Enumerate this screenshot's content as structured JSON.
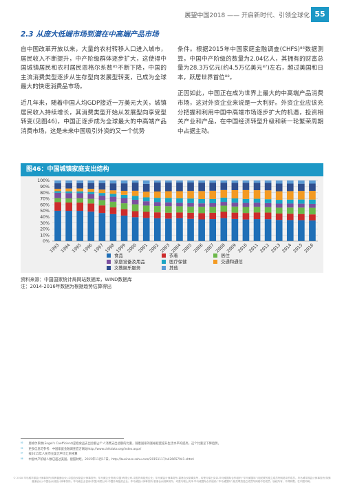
{
  "header": {
    "text": "展望中国2018 —— 开启新时代、引领全球化",
    "page_number": "55"
  },
  "section_title": "2.3 从庞大低端市场到潜在中高端产品市场",
  "left_column": [
    "自中国改革开放以来，大量的农村转移人口进入城市，居民收入不断提升，中产阶级群体逐步扩大，这使得中国城镇居民和农村居民恩格尔系数⁸⁵不断下降，中国的主流消费类型逐步从生存型向发展型转变，已成为全球最大的快速消费品市场。",
    "近几年来，随着中国人均GDP接近一万美元大关，城镇居民收入持续增长，其消费类型开始从发展型向享受型转变(见图46)，中国正逐步成为全球最大的中高端产品消费市场，这是未来中国吸引外资的又一个优势"
  ],
  "right_column": [
    "条件。根据2015年中国家庭金融调查(CHFS)⁸⁶数据测算，中国中产阶级的数量为2.04亿人，其拥有的财富总量为28.3万亿元(约4.5万亿美元⁸⁷)左右，超过美国和日本，跃居世界首位⁸⁸。",
    "正因如此，中国正在成为世界上最大的中高端产品消费市场，这对外资企业来说是一大利好。外资企业应该充分把握和利用中国中高端市场逐步扩大的机遇，投资相关产业和产品，在中国经济转型升级和新一轮繁荣周期中占据主动。"
  ],
  "figure_title": "图46：中国城镇家庭支出结构",
  "chart_data": {
    "type": "bar",
    "stacked": true,
    "categories": [
      "1993",
      "1994",
      "1995",
      "1996",
      "1997",
      "1998",
      "1999",
      "2000",
      "2001",
      "2002",
      "2003",
      "2004",
      "2005",
      "2006",
      "2007",
      "2008",
      "2009",
      "2010",
      "2011",
      "2012",
      "2013",
      "2014",
      "2015",
      "2016"
    ],
    "y_ticks": [
      "0%",
      "10%",
      "20%",
      "30%",
      "40%",
      "50%",
      "60%",
      "70%",
      "80%",
      "90%",
      "100%"
    ],
    "ylim": [
      0,
      100
    ],
    "grid": true,
    "legend_position": "bottom",
    "series": [
      {
        "name": "食品",
        "color": "#1f6fb7",
        "values": [
          50.1,
          49.9,
          49.9,
          48.6,
          46.4,
          44.5,
          42.1,
          39.4,
          38.2,
          37.7,
          37.1,
          37.7,
          36.7,
          35.8,
          36.3,
          37.9,
          36.5,
          35.7,
          36.3,
          36.2,
          35.0,
          34.8,
          34.5,
          34.0
        ]
      },
      {
        "name": "衣着",
        "color": "#cc2b2b",
        "values": [
          14.2,
          13.7,
          13.6,
          13.5,
          12.5,
          11.1,
          10.5,
          10.0,
          10.1,
          9.8,
          9.8,
          9.6,
          10.1,
          10.4,
          10.4,
          10.4,
          10.5,
          10.7,
          11.0,
          10.9,
          10.5,
          10.4,
          10.2,
          10.1
        ]
      },
      {
        "name": "居住",
        "color": "#6bb84a",
        "values": [
          6.6,
          6.8,
          7.1,
          7.7,
          8.6,
          9.4,
          9.8,
          11.3,
          10.3,
          10.4,
          10.7,
          10.2,
          10.2,
          10.4,
          9.8,
          10.2,
          10.0,
          9.9,
          9.3,
          8.9,
          9.7,
          10.2,
          10.6,
          10.9
        ]
      },
      {
        "name": "家庭设备及用品",
        "color": "#7b4fa0",
        "values": [
          8.8,
          8.8,
          8.4,
          7.6,
          7.6,
          8.2,
          8.6,
          7.5,
          7.1,
          6.4,
          6.3,
          5.7,
          5.6,
          5.7,
          6.0,
          6.2,
          6.4,
          6.7,
          6.8,
          6.7,
          6.7,
          6.6,
          6.5,
          6.4
        ]
      },
      {
        "name": "医疗保健",
        "color": "#1ba5c4",
        "values": [
          2.7,
          2.9,
          3.1,
          3.7,
          4.3,
          4.7,
          5.3,
          6.4,
          6.5,
          7.1,
          7.3,
          7.4,
          7.6,
          7.1,
          7.0,
          7.0,
          7.0,
          6.5,
          6.4,
          6.4,
          6.2,
          6.5,
          6.8,
          7.1
        ]
      },
      {
        "name": "交通和通信",
        "color": "#f39a22",
        "values": [
          3.8,
          4.7,
          4.8,
          5.1,
          5.6,
          5.9,
          6.7,
          8.5,
          9.3,
          10.4,
          11.1,
          11.8,
          12.6,
          13.2,
          13.6,
          12.6,
          13.7,
          14.7,
          14.2,
          14.7,
          14.1,
          14.0,
          14.2,
          14.4
        ]
      },
      {
        "name": "文教娱乐服务",
        "color": "#2f4f8f",
        "values": [
          9.2,
          8.8,
          8.8,
          9.6,
          10.7,
          11.5,
          12.3,
          13.4,
          13.0,
          15.0,
          14.4,
          14.4,
          13.8,
          13.8,
          13.3,
          12.1,
          12.0,
          12.1,
          12.2,
          12.2,
          12.7,
          12.4,
          11.9,
          12.0
        ]
      },
      {
        "name": "其他",
        "color": "#5b9bd5",
        "values": [
          4.6,
          4.4,
          4.3,
          4.2,
          4.3,
          4.7,
          4.7,
          3.5,
          5.5,
          3.2,
          3.3,
          3.2,
          3.4,
          3.6,
          3.6,
          3.6,
          3.9,
          3.7,
          3.8,
          4.0,
          5.1,
          5.1,
          5.3,
          5.1
        ]
      }
    ]
  },
  "source_lines": [
    "资料来源：中国国家统计局网站数据库，WIND数据库",
    "注：2014-2016年数据为根据趋势估算得出"
  ],
  "footnotes": [
    {
      "num": "⁸⁵",
      "text": "恩格尔系数(Engel's Coefficient)是指食品支出总额占个人消费支出总额的比重，随着国家的富裕程度提升生活水平的提高，这个比重呈下降趋势。"
    },
    {
      "num": "⁸⁶",
      "text": "更多信息可参考：中国家庭金融调查官方网站http://www.chfsdata.org/index.aspx/"
    },
    {
      "num": "⁸⁷",
      "text": "按2015年人民币兑美元平均汇率换算"
    },
    {
      "num": "⁸⁸",
      "text": "中国中产阶级人数已超过美国，搜狐财经，2015年11月17日，http://business.sohu.com/20151117/n426657941.shtml"
    }
  ],
  "copyright": "© 2018 毕马威华振会计师事务所(特殊普通合伙)-中国合伙制会计师事务所；毕马威企业咨询(中国)有限公司-中国外商独资企业；毕马威会计师事务所-香港合伙制事务所，均是与瑞士实体-毕马威国际合作组织(“毕马威国际”)相关联的独立成员所网络中的成员。毕马威华振会计师事务所(特殊普通合伙)-中国合伙制会计师事务所；毕马威企业咨询(中国)有限公司-中国外商独资企业；毕马威会计师事务所-香港合伙制事务所，均是与瑞士实体-毕马威国际合作组织(“毕马威国际”)相关联的独立成员所网络中的成员。版权所有，不得转载。在中国印刷。"
}
